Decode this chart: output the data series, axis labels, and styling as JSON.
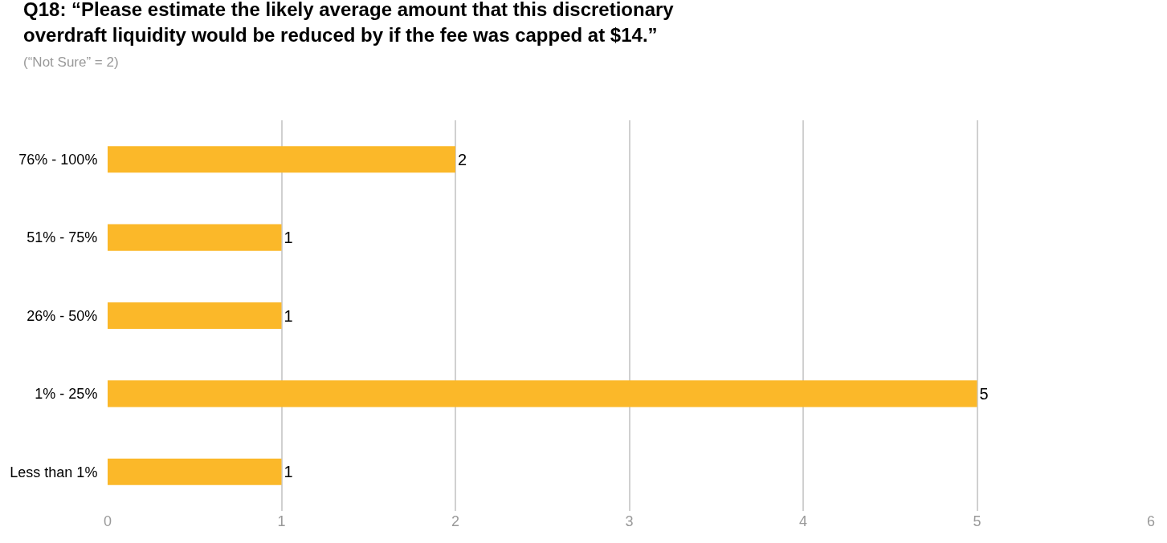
{
  "chart_data": {
    "type": "bar",
    "orientation": "horizontal",
    "title": "Q18: “Please estimate the likely average amount that this discretionary overdraft liquidity would be reduced by if the fee was capped at $14.”",
    "subtitle": "(“Not Sure” = 2)",
    "categories": [
      "76% - 100%",
      "51% - 75%",
      "26% - 50%",
      "1% - 25%",
      "Less than 1%"
    ],
    "values": [
      2,
      1,
      1,
      5,
      1
    ],
    "color": "#fbb829",
    "xlim": [
      0,
      6
    ],
    "xticks": [
      0,
      1,
      2,
      3,
      4,
      5,
      6
    ],
    "grid": "x",
    "data_labels": true,
    "legend": false
  }
}
